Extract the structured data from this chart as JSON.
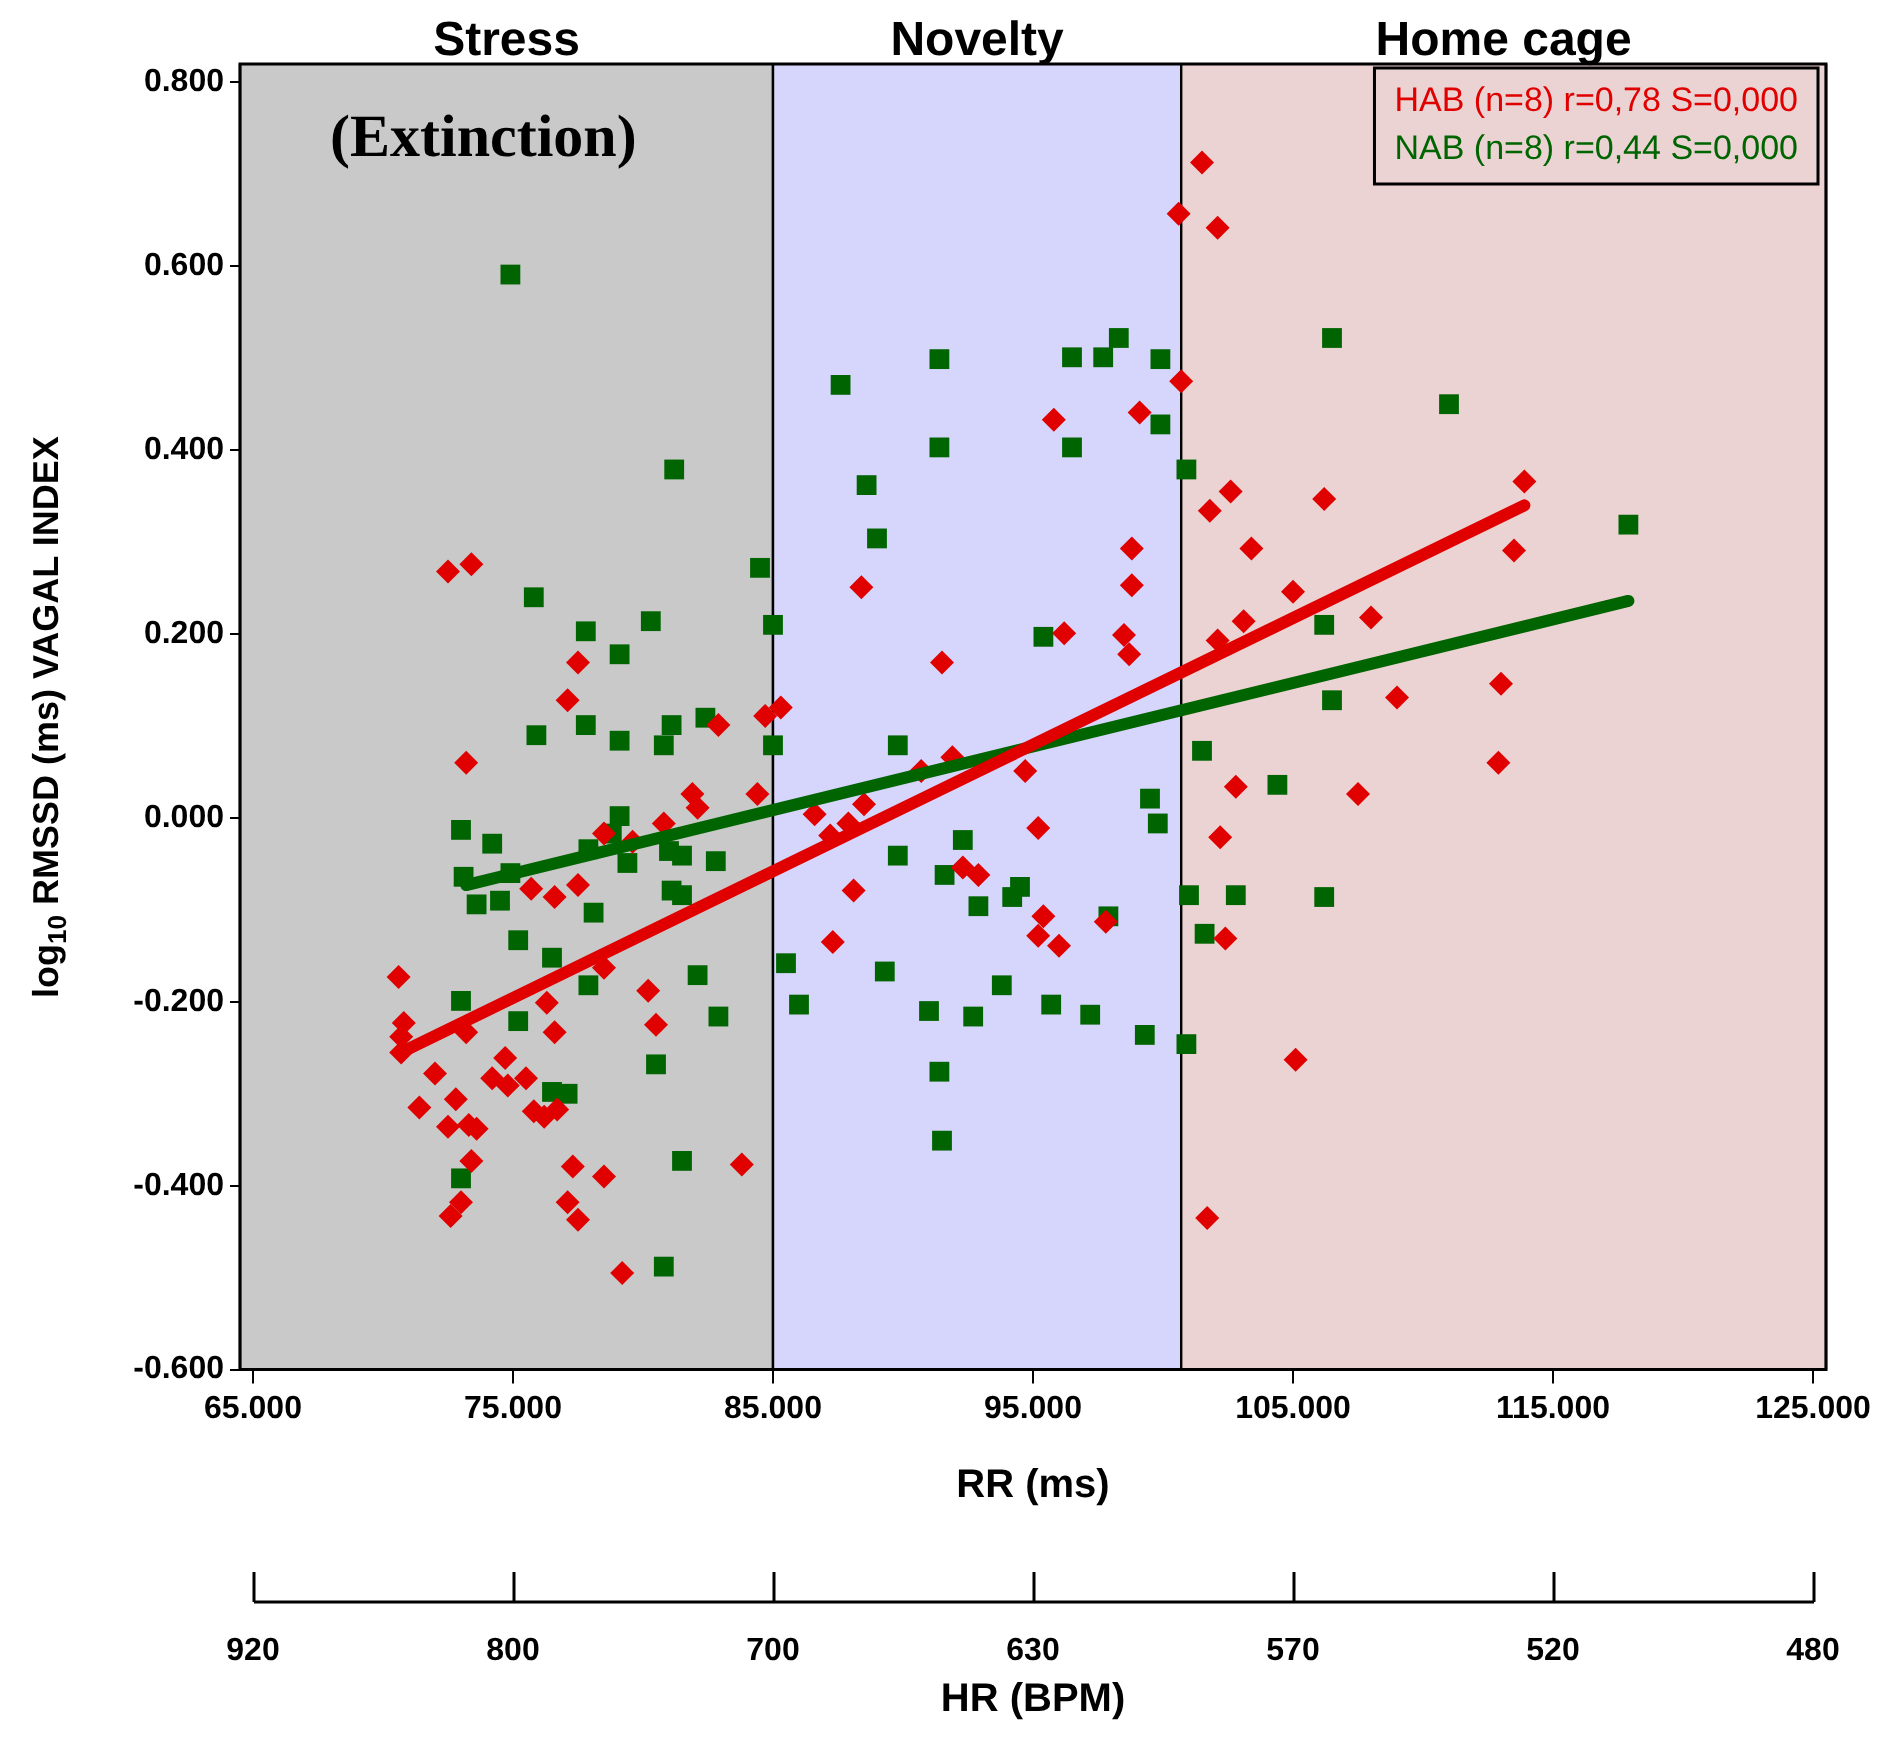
{
  "chart_data": {
    "type": "scatter",
    "xlabel": "RR (ms)",
    "ylabel": "log$_{10}$ RMSSD (ms) VAGAL INDEX",
    "xlim": [
      64.5,
      125.5
    ],
    "ylim": [
      -0.6,
      0.82
    ],
    "xticks": [
      {
        "value": 65,
        "label": "65.000"
      },
      {
        "value": 75,
        "label": "75.000"
      },
      {
        "value": 85,
        "label": "85.000"
      },
      {
        "value": 95,
        "label": "95.000"
      },
      {
        "value": 105,
        "label": "105.000"
      },
      {
        "value": 115,
        "label": "115.000"
      },
      {
        "value": 125,
        "label": "125.000"
      }
    ],
    "yticks": [
      {
        "value": -0.6,
        "label": "-0.600"
      },
      {
        "value": -0.4,
        "label": "-0.400"
      },
      {
        "value": -0.2,
        "label": "-0.200"
      },
      {
        "value": 0,
        "label": "0.000"
      },
      {
        "value": 0.2,
        "label": "0.200"
      },
      {
        "value": 0.4,
        "label": "0.400"
      },
      {
        "value": 0.6,
        "label": "0.600"
      },
      {
        "value": 0.8,
        "label": "0.800"
      }
    ],
    "bands": [
      {
        "axis": "x",
        "from": 64.5,
        "to": 85,
        "label": "Stress",
        "color": "#c9c9c9"
      },
      {
        "axis": "x",
        "from": 85,
        "to": 100.7,
        "label": "Novelty",
        "color": "#d6d6fc"
      },
      {
        "axis": "x",
        "from": 100.7,
        "to": 125.5,
        "label": "Home cage",
        "color": "#ebd3d3"
      }
    ],
    "annotations": [
      "(Extinction)",
      "920",
      "800",
      "700",
      "630",
      "570",
      "520",
      "480",
      "HR (BPM)"
    ],
    "legend": "top right",
    "series": [
      {
        "name": "HAB (n=8) r=0,78 S=0,000",
        "color": "#e00000",
        "marker": "diamond",
        "x": [
          101.5,
          100.6,
          102.1,
          100.7,
          95.8,
          99.1,
          102.6,
          101.8,
          103.4,
          98.8,
          98.8,
          88.4,
          105.0,
          103.1,
          102.1,
          96.2,
          98.5,
          98.7,
          91.5,
          85.3,
          84.7,
          113.9,
          106.2,
          113.5,
          108.0,
          113.0,
          109.0,
          112.9,
          107.5,
          105.1,
          102.8,
          102.2,
          102.4,
          101.7,
          94.7,
          91.9,
          90.7,
          95.2,
          88.5,
          86.6,
          87.2,
          87.9,
          92.3,
          92.9,
          88.1,
          95.4,
          95.2,
          96.0,
          97.8,
          87.3,
          73.2,
          82.9,
          81.9,
          82.1,
          84.4,
          80.8,
          78.5,
          79.6,
          75.7,
          76.6,
          77.5,
          70.6,
          78.5,
          80.2,
          80.5,
          76.3,
          76.6,
          70.8,
          70.7,
          70.7,
          73.2,
          74.7,
          72.0,
          74.2,
          74.8,
          75.5,
          72.8,
          71.4,
          75.8,
          76.2,
          76.7,
          72.5,
          73.3,
          73.6,
          73.4,
          77.3,
          78.5,
          83.8,
          73.0,
          72.6,
          77.1,
          77.5,
          79.2,
          72.5,
          73.4,
          77.5,
          77.1
        ],
        "values": [
          0.713,
          0.657,
          0.642,
          0.475,
          0.433,
          0.441,
          0.355,
          0.334,
          0.293,
          0.293,
          0.253,
          0.251,
          0.246,
          0.214,
          0.193,
          0.201,
          0.199,
          0.178,
          0.169,
          0.12,
          0.111,
          0.366,
          0.347,
          0.291,
          0.218,
          0.146,
          0.131,
          0.06,
          0.026,
          -0.263,
          0.034,
          -0.021,
          -0.131,
          -0.435,
          0.051,
          0.066,
          0.051,
          -0.011,
          0.015,
          0.004,
          -0.019,
          -0.006,
          -0.054,
          -0.062,
          -0.079,
          -0.107,
          -0.128,
          -0.139,
          -0.113,
          -0.135,
          0.06,
          0.101,
          0.026,
          0.011,
          0.026,
          -0.006,
          -0.017,
          -0.026,
          -0.077,
          -0.086,
          -0.073,
          -0.173,
          -0.163,
          -0.188,
          -0.225,
          -0.201,
          -0.233,
          -0.223,
          -0.238,
          -0.255,
          -0.233,
          -0.261,
          -0.278,
          -0.283,
          -0.291,
          -0.283,
          -0.306,
          -0.315,
          -0.319,
          -0.325,
          -0.317,
          -0.336,
          -0.334,
          -0.338,
          -0.373,
          -0.379,
          -0.39,
          -0.377,
          -0.418,
          -0.433,
          -0.418,
          -0.437,
          -0.495,
          0.268,
          0.276,
          0.169,
          0.128
        ]
      },
      {
        "name": "NAB (n=8) r=0,44 S=0,000",
        "color": "#006400",
        "marker": "square",
        "x": [
          74.9,
          81.2,
          84.5,
          75.8,
          77.8,
          80.3,
          79.1,
          85.0,
          75.9,
          77.8,
          79.1,
          80.8,
          81.1,
          82.4,
          85.0,
          73.0,
          74.2,
          79.1,
          78.8,
          77.9,
          79.4,
          81.0,
          81.5,
          82.8,
          74.9,
          73.1,
          73.6,
          74.5,
          78.1,
          81.1,
          81.5,
          75.2,
          76.5,
          77.9,
          82.1,
          82.9,
          73.0,
          75.2,
          80.5,
          76.5,
          77.1,
          81.5,
          73.0,
          80.8,
          91.4,
          87.6,
          96.5,
          97.7,
          98.3,
          99.9,
          99.9,
          91.4,
          96.5,
          88.6,
          89.0,
          100.9,
          95.4,
          106.5,
          111.0,
          117.9,
          106.2,
          106.5,
          89.8,
          101.5,
          104.4,
          99.5,
          99.8,
          92.3,
          89.8,
          91.6,
          94.5,
          94.2,
          92.9,
          97.9,
          101.0,
          102.8,
          101.6,
          85.5,
          89.3,
          86.0,
          91.0,
          92.7,
          93.8,
          95.7,
          97.2,
          99.3,
          100.9,
          91.4,
          91.5,
          106.2
        ],
        "values": [
          0.591,
          0.379,
          0.272,
          0.24,
          0.203,
          0.214,
          0.178,
          0.21,
          0.09,
          0.101,
          0.084,
          0.079,
          0.101,
          0.109,
          0.079,
          -0.013,
          -0.028,
          0.002,
          -0.017,
          -0.034,
          -0.049,
          -0.036,
          -0.041,
          -0.047,
          -0.06,
          -0.064,
          -0.094,
          -0.09,
          -0.103,
          -0.079,
          -0.084,
          -0.133,
          -0.152,
          -0.182,
          -0.171,
          -0.216,
          -0.199,
          -0.221,
          -0.268,
          -0.298,
          -0.3,
          -0.373,
          -0.392,
          -0.488,
          0.499,
          0.471,
          0.501,
          0.501,
          0.522,
          0.499,
          0.428,
          0.403,
          0.403,
          0.362,
          0.304,
          0.379,
          0.197,
          0.522,
          0.45,
          0.319,
          0.21,
          0.128,
          0.079,
          0.073,
          0.036,
          0.021,
          -0.006,
          -0.024,
          -0.041,
          -0.062,
          -0.075,
          -0.086,
          -0.096,
          -0.107,
          -0.084,
          -0.084,
          -0.126,
          -0.158,
          -0.167,
          -0.203,
          -0.21,
          -0.216,
          -0.182,
          -0.203,
          -0.214,
          -0.236,
          -0.246,
          -0.276,
          -0.351,
          -0.086
        ]
      },
      {
        "type": "line",
        "color": "#e00000",
        "x": [
          70.7,
          113.9
        ],
        "values": [
          -0.255,
          0.34
        ]
      },
      {
        "type": "line",
        "color": "#006400",
        "x": [
          73.2,
          117.9
        ],
        "values": [
          -0.073,
          0.236
        ]
      }
    ]
  }
}
